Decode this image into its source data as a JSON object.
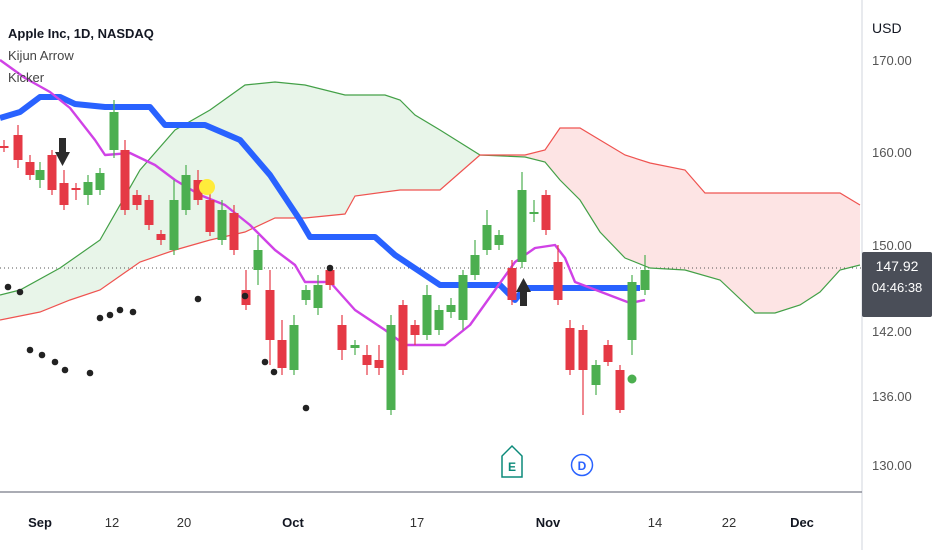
{
  "header": {
    "title": "Apple Inc, 1D, NASDAQ",
    "indicators": [
      "Kijun Arrow",
      "Kicker"
    ]
  },
  "currency": "USD",
  "last_price": {
    "price": "147.92",
    "countdown": "04:46:38"
  },
  "chart_data": {
    "type": "candlestick",
    "y_ticks": [
      "170.00",
      "160.00",
      "150.00",
      "142.00",
      "136.00",
      "130.00"
    ],
    "x_ticks": [
      {
        "label": "Sep",
        "bold": true
      },
      {
        "label": "12",
        "bold": false
      },
      {
        "label": "20",
        "bold": false
      },
      {
        "label": "Oct",
        "bold": true
      },
      {
        "label": "17",
        "bold": false
      },
      {
        "label": "Nov",
        "bold": true
      },
      {
        "label": "14",
        "bold": false
      },
      {
        "label": "22",
        "bold": false
      },
      {
        "label": "Dec",
        "bold": true
      }
    ],
    "colors": {
      "up": "#4caf50",
      "down": "#e53945",
      "kijun": "#2962ff",
      "tenkan": "#d042e6",
      "span_a": "#43a047",
      "span_b": "#ef5350",
      "cloud_bull": "#e8f5e9",
      "cloud_bear": "#fde4e4"
    },
    "markers": [
      "E",
      "D"
    ]
  }
}
